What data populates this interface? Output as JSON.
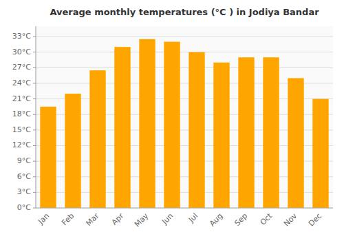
{
  "chart_data": {
    "type": "bar",
    "title": "Average monthly temperatures (°C ) in Jodiya Bandar",
    "categories": [
      "Jan",
      "Feb",
      "Mar",
      "Apr",
      "May",
      "Jun",
      "Jul",
      "Aug",
      "Sep",
      "Oct",
      "Nov",
      "Dec"
    ],
    "values": [
      19.5,
      22.0,
      26.5,
      31.0,
      32.5,
      32.0,
      30.0,
      28.0,
      29.0,
      29.0,
      25.0,
      21.0
    ],
    "color": "#FFA500",
    "ylim": [
      0,
      35
    ],
    "yticks": [
      {
        "value": 0,
        "label": "0°C"
      },
      {
        "value": 3,
        "label": "3°C"
      },
      {
        "value": 6,
        "label": "6°C"
      },
      {
        "value": 9,
        "label": "9°C"
      },
      {
        "value": 12,
        "label": "12°C"
      },
      {
        "value": 15,
        "label": "15°C"
      },
      {
        "value": 18,
        "label": "18°C"
      },
      {
        "value": 21,
        "label": "21°C"
      },
      {
        "value": 24,
        "label": "24°C"
      },
      {
        "value": 27,
        "label": "27°C"
      },
      {
        "value": 30,
        "label": "30°C"
      },
      {
        "value": 33,
        "label": "33°C"
      }
    ],
    "grid": true
  }
}
